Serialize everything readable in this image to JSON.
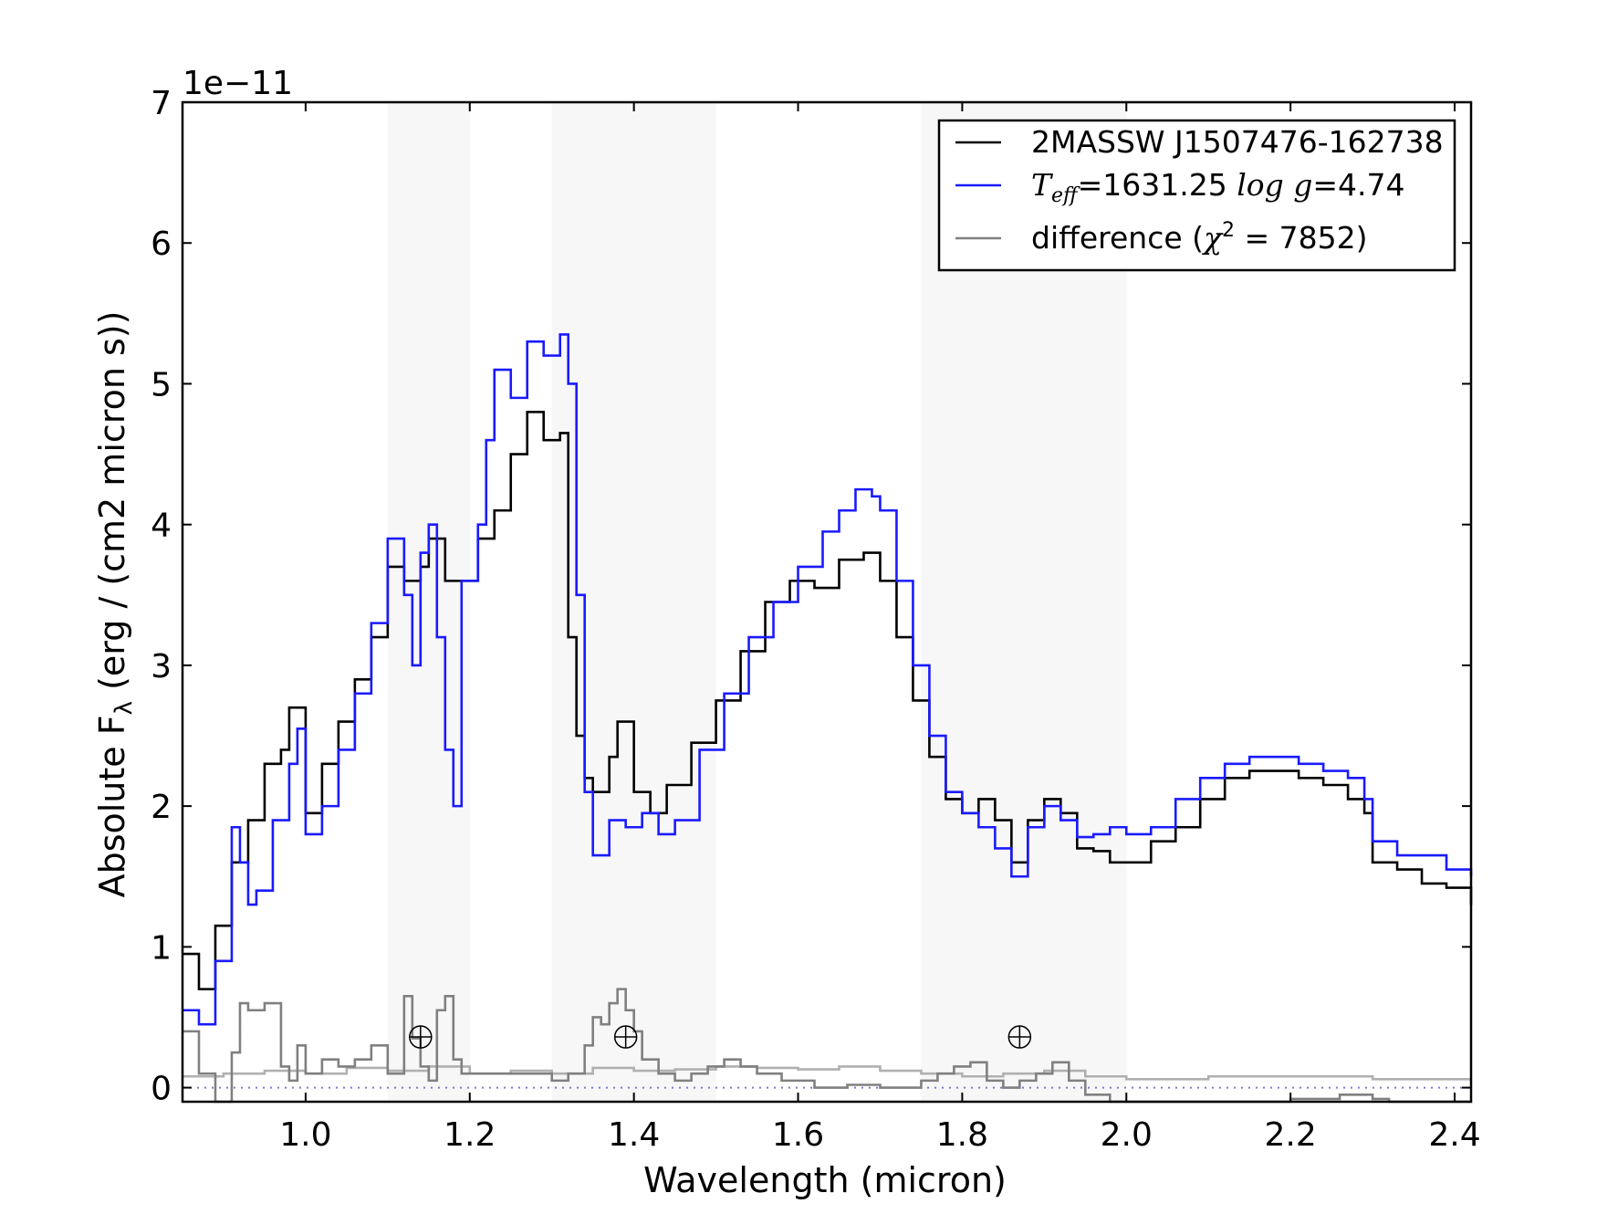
{
  "chart_data": {
    "type": "line",
    "xlabel": "Wavelength (micron)",
    "ylabel_main": "Absolute F",
    "ylabel_sub": "λ",
    "ylabel_rest": " (erg / (cm2 micron s))",
    "offset_label": "1e−11",
    "y_scale_factor": 1e-11,
    "xlim": [
      0.85,
      2.42
    ],
    "ylim": [
      -0.1,
      7.0
    ],
    "xticks": [
      1.0,
      1.2,
      1.4,
      1.6,
      1.8,
      2.0,
      2.2,
      2.4
    ],
    "xtick_labels": [
      "1.0",
      "1.2",
      "1.4",
      "1.6",
      "1.8",
      "2.0",
      "2.2",
      "2.4"
    ],
    "yticks": [
      0,
      1,
      2,
      3,
      4,
      5,
      6,
      7
    ],
    "ytick_labels": [
      "0",
      "1",
      "2",
      "3",
      "4",
      "5",
      "6",
      "7"
    ],
    "shaded_bands": [
      [
        1.1,
        1.2
      ],
      [
        1.3,
        1.5
      ],
      [
        1.75,
        2.0
      ]
    ],
    "telluric_marker_x": [
      1.14,
      1.39,
      1.87
    ],
    "telluric_marker_y": 0.36,
    "zero_line": 0,
    "legend": {
      "position": "top-right",
      "entries": [
        {
          "label": "2MASSW J1507476-162738",
          "color": "#000000"
        },
        {
          "label_math": "T",
          "label_sub": "eff",
          "label_mid": "=1631.25 ",
          "label_math2": "log g",
          "label_end": "=4.74",
          "color": "#1a1aff"
        },
        {
          "label_pre": "difference (",
          "label_math": "χ",
          "label_sup": "2",
          "label_end": " = 7852)",
          "color": "#808080"
        }
      ]
    },
    "series": [
      {
        "name": "2MASSW J1507476-162738",
        "color": "#000000",
        "x": [
          0.85,
          0.87,
          0.89,
          0.91,
          0.93,
          0.95,
          0.97,
          0.98,
          1.0,
          1.02,
          1.04,
          1.06,
          1.08,
          1.1,
          1.12,
          1.14,
          1.15,
          1.17,
          1.19,
          1.21,
          1.23,
          1.25,
          1.27,
          1.29,
          1.31,
          1.32,
          1.33,
          1.34,
          1.35,
          1.37,
          1.38,
          1.4,
          1.42,
          1.44,
          1.47,
          1.5,
          1.53,
          1.56,
          1.59,
          1.62,
          1.65,
          1.68,
          1.7,
          1.72,
          1.74,
          1.76,
          1.78,
          1.8,
          1.82,
          1.84,
          1.86,
          1.88,
          1.9,
          1.92,
          1.94,
          1.96,
          1.98,
          2.0,
          2.03,
          2.06,
          2.09,
          2.12,
          2.15,
          2.18,
          2.21,
          2.24,
          2.27,
          2.29,
          2.3,
          2.33,
          2.36,
          2.39,
          2.42
        ],
        "y": [
          0.95,
          0.7,
          1.15,
          1.6,
          1.9,
          2.3,
          2.4,
          2.7,
          1.95,
          2.3,
          2.6,
          2.9,
          3.2,
          3.7,
          3.6,
          3.7,
          3.9,
          3.6,
          3.6,
          3.9,
          4.1,
          4.5,
          4.8,
          4.6,
          4.65,
          3.2,
          2.5,
          2.2,
          2.1,
          2.35,
          2.6,
          2.1,
          1.95,
          2.15,
          2.45,
          2.75,
          3.1,
          3.45,
          3.6,
          3.55,
          3.75,
          3.8,
          3.6,
          3.2,
          2.75,
          2.35,
          2.05,
          1.95,
          2.05,
          1.9,
          1.6,
          1.9,
          2.05,
          1.95,
          1.7,
          1.68,
          1.6,
          1.6,
          1.75,
          1.85,
          2.05,
          2.2,
          2.25,
          2.25,
          2.2,
          2.15,
          2.05,
          1.95,
          1.6,
          1.55,
          1.45,
          1.42,
          1.3
        ]
      },
      {
        "name": "Teff=1631.25 log g=4.74",
        "color": "#1a1aff",
        "x": [
          0.85,
          0.87,
          0.89,
          0.91,
          0.92,
          0.93,
          0.94,
          0.96,
          0.98,
          0.99,
          1.0,
          1.02,
          1.04,
          1.06,
          1.08,
          1.1,
          1.12,
          1.13,
          1.14,
          1.15,
          1.16,
          1.17,
          1.18,
          1.19,
          1.21,
          1.22,
          1.23,
          1.25,
          1.27,
          1.29,
          1.31,
          1.32,
          1.33,
          1.34,
          1.35,
          1.37,
          1.39,
          1.41,
          1.43,
          1.45,
          1.48,
          1.51,
          1.54,
          1.57,
          1.6,
          1.63,
          1.65,
          1.67,
          1.69,
          1.7,
          1.72,
          1.74,
          1.76,
          1.78,
          1.8,
          1.82,
          1.84,
          1.86,
          1.88,
          1.9,
          1.92,
          1.94,
          1.96,
          1.98,
          2.0,
          2.03,
          2.06,
          2.09,
          2.12,
          2.15,
          2.18,
          2.21,
          2.24,
          2.27,
          2.29,
          2.3,
          2.33,
          2.36,
          2.39,
          2.42
        ],
        "y": [
          0.55,
          0.45,
          0.9,
          1.85,
          1.6,
          1.3,
          1.4,
          1.9,
          2.3,
          2.55,
          1.8,
          2.0,
          2.4,
          2.8,
          3.3,
          3.9,
          3.5,
          3.0,
          3.8,
          4.0,
          3.2,
          2.4,
          2.0,
          3.6,
          4.0,
          4.6,
          5.1,
          4.9,
          5.3,
          5.2,
          5.35,
          5.0,
          3.5,
          2.1,
          1.65,
          1.9,
          1.85,
          1.95,
          1.8,
          1.9,
          2.4,
          2.8,
          3.2,
          3.45,
          3.7,
          3.95,
          4.1,
          4.25,
          4.2,
          4.1,
          3.6,
          3.0,
          2.5,
          2.1,
          1.95,
          1.85,
          1.7,
          1.5,
          1.85,
          2.0,
          1.9,
          1.78,
          1.8,
          1.85,
          1.8,
          1.85,
          2.05,
          2.2,
          2.3,
          2.35,
          2.35,
          2.3,
          2.25,
          2.2,
          2.05,
          1.75,
          1.65,
          1.65,
          1.55,
          1.5
        ]
      },
      {
        "name": "difference (χ2 = 7852)",
        "color": "#808080",
        "x": [
          0.85,
          0.87,
          0.89,
          0.91,
          0.92,
          0.93,
          0.95,
          0.97,
          0.98,
          0.99,
          1.0,
          1.02,
          1.04,
          1.06,
          1.08,
          1.1,
          1.12,
          1.13,
          1.14,
          1.15,
          1.16,
          1.17,
          1.18,
          1.19,
          1.21,
          1.24,
          1.27,
          1.3,
          1.32,
          1.34,
          1.35,
          1.36,
          1.37,
          1.38,
          1.39,
          1.4,
          1.41,
          1.43,
          1.45,
          1.47,
          1.49,
          1.51,
          1.53,
          1.55,
          1.58,
          1.62,
          1.66,
          1.7,
          1.73,
          1.75,
          1.77,
          1.79,
          1.81,
          1.83,
          1.85,
          1.87,
          1.89,
          1.91,
          1.93,
          1.95,
          1.98,
          2.02,
          2.08,
          2.14,
          2.2,
          2.26,
          2.3,
          2.32,
          2.36,
          2.42
        ],
        "y": [
          0.4,
          0.1,
          -0.1,
          0.25,
          0.6,
          0.55,
          0.6,
          0.15,
          0.05,
          0.3,
          0.1,
          0.2,
          0.15,
          0.2,
          0.3,
          0.1,
          0.65,
          0.35,
          0.15,
          0.05,
          0.55,
          0.65,
          0.2,
          0.1,
          0.1,
          0.1,
          0.1,
          0.05,
          0.1,
          0.3,
          0.5,
          0.45,
          0.6,
          0.7,
          0.55,
          0.4,
          0.2,
          0.1,
          0.05,
          0.1,
          0.15,
          0.2,
          0.15,
          0.1,
          0.05,
          0.0,
          0.02,
          0.0,
          0.0,
          0.05,
          0.1,
          0.15,
          0.18,
          0.05,
          0.0,
          0.05,
          0.1,
          0.18,
          0.05,
          -0.05,
          -0.1,
          -0.1,
          -0.1,
          -0.1,
          -0.08,
          -0.05,
          -0.08,
          -0.1,
          -0.1,
          -0.1
        ]
      },
      {
        "name": "",
        "color": "#b0b0b0",
        "x": [
          0.85,
          0.9,
          0.95,
          1.0,
          1.05,
          1.1,
          1.15,
          1.2,
          1.25,
          1.3,
          1.35,
          1.4,
          1.45,
          1.5,
          1.55,
          1.6,
          1.65,
          1.7,
          1.75,
          1.8,
          1.85,
          1.9,
          1.95,
          2.0,
          2.1,
          2.2,
          2.3,
          2.42
        ],
        "y": [
          0.08,
          0.1,
          0.12,
          0.1,
          0.14,
          0.12,
          0.15,
          0.1,
          0.12,
          0.1,
          0.14,
          0.12,
          0.13,
          0.15,
          0.14,
          0.13,
          0.15,
          0.12,
          0.1,
          0.08,
          0.1,
          0.12,
          0.08,
          0.06,
          0.08,
          0.08,
          0.06,
          0.06
        ]
      }
    ]
  }
}
